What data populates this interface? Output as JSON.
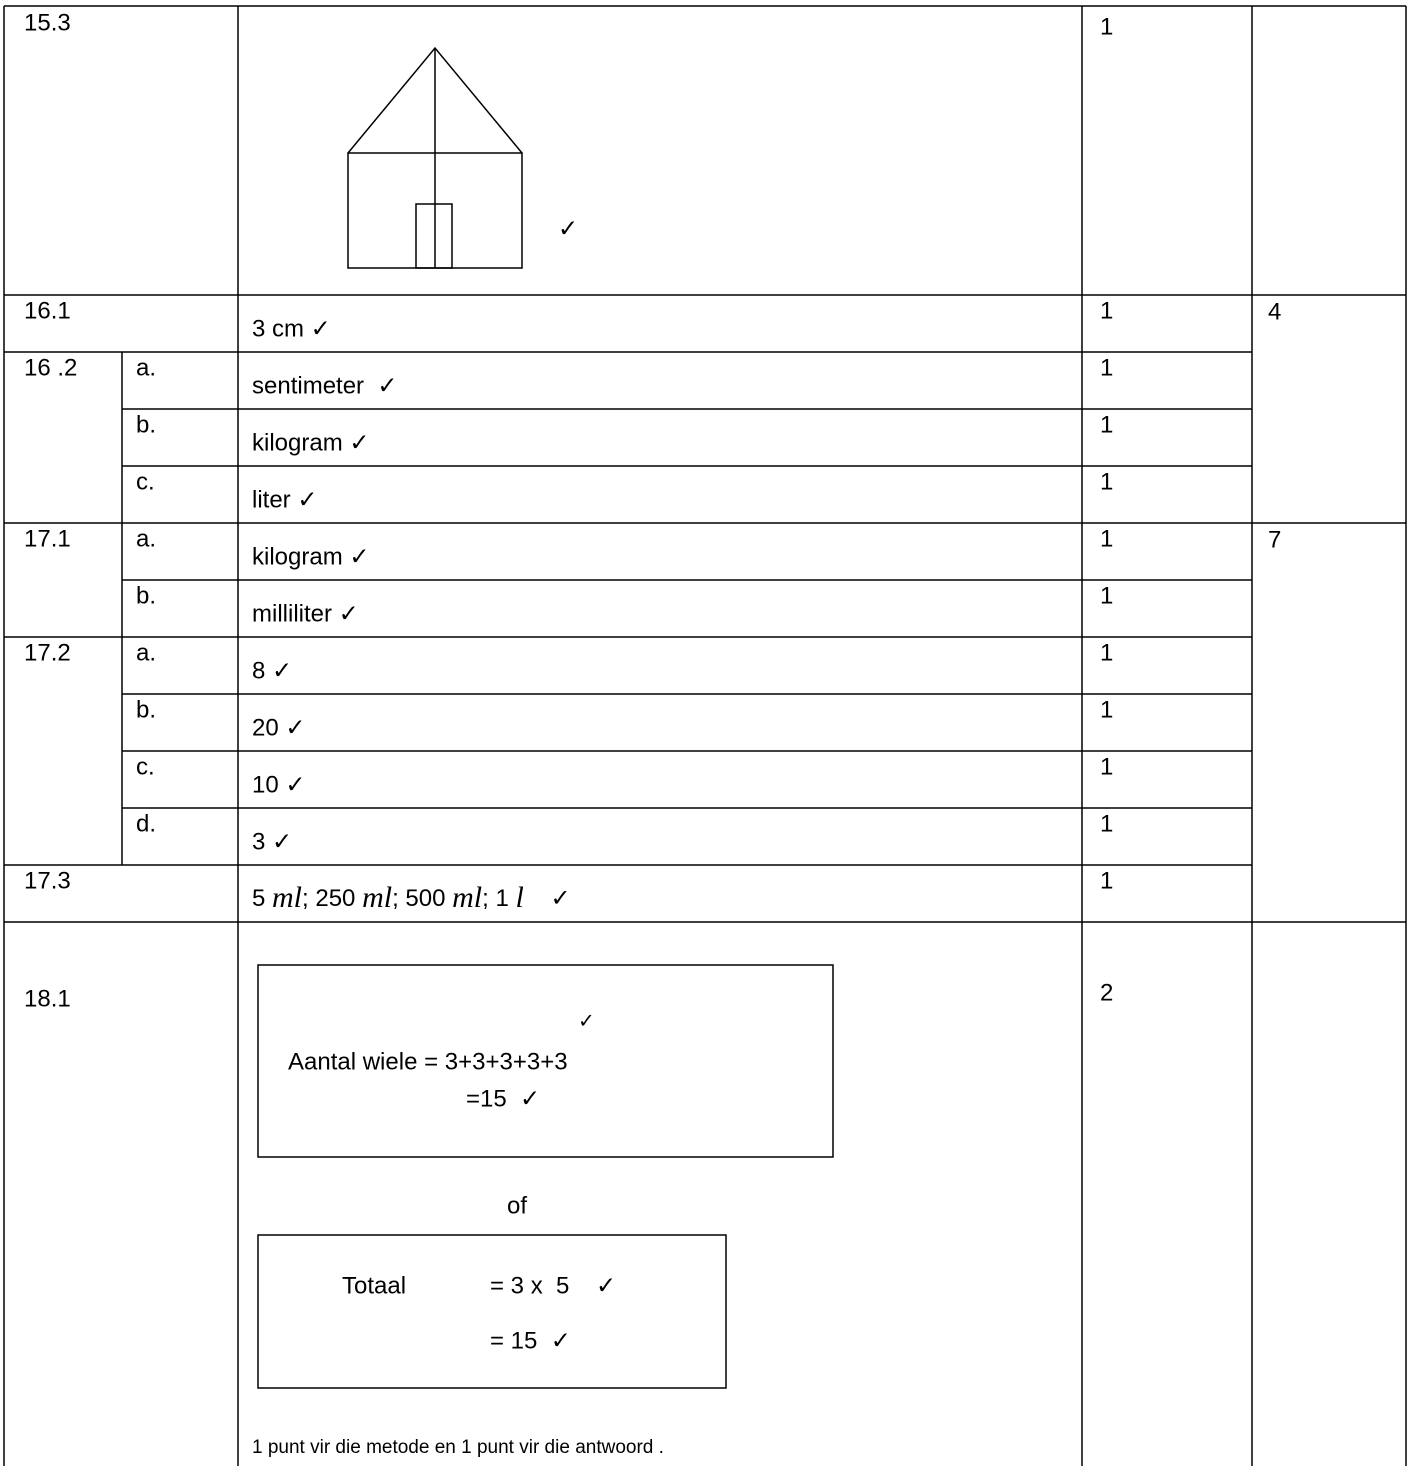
{
  "table": {
    "rows": [
      {
        "question": "15.3",
        "mark": "1",
        "check": "✓"
      },
      {
        "question": "16.1",
        "answer": "3 cm ✓",
        "mark": "1",
        "total": "4"
      },
      {
        "question": "16 .2",
        "parts": [
          {
            "letter": "a.",
            "answer": "sentimeter  ✓",
            "mark": "1"
          },
          {
            "letter": "b.",
            "answer": "kilogram ✓",
            "mark": "1"
          },
          {
            "letter": "c.",
            "answer": "liter ✓",
            "mark": "1"
          }
        ]
      },
      {
        "question": "17.1",
        "total": "7",
        "parts": [
          {
            "letter": "a.",
            "answer": "kilogram ✓",
            "mark": "1"
          },
          {
            "letter": "b.",
            "answer": "milliliter ✓",
            "mark": "1"
          }
        ]
      },
      {
        "question": "17.2",
        "parts": [
          {
            "letter": "a.",
            "answer": "8 ✓",
            "mark": "1"
          },
          {
            "letter": "b.",
            "answer": "20 ✓",
            "mark": "1"
          },
          {
            "letter": "c.",
            "answer": "10 ✓",
            "mark": "1"
          },
          {
            "letter": "d.",
            "answer": "3 ✓",
            "mark": "1"
          }
        ]
      },
      {
        "question": "17.3",
        "answer": [
          "5 ",
          "ml",
          "; 250 ",
          "ml",
          "; 500 ",
          "ml",
          "; 1 ",
          "l",
          "    ✓"
        ],
        "mark": "1"
      },
      {
        "question": "18.1",
        "mark": "2",
        "method_1": {
          "check": "✓",
          "line_1": "Aantal wiele = 3+3+3+3+3",
          "line_2": "=15  ✓"
        },
        "separator": "of",
        "method_2": {
          "label": "Totaal",
          "line_1": "= 3 x  5    ✓",
          "line_2": "= 15  ✓"
        },
        "note": "1 punt vir die metode en 1 punt vir die antwoord ."
      }
    ]
  }
}
